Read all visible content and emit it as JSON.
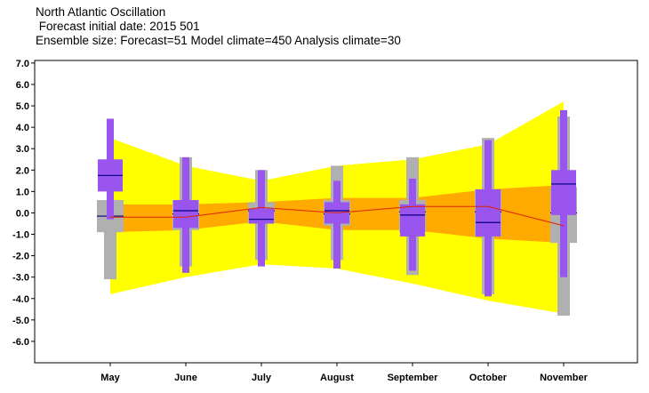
{
  "title": {
    "line1": "North Atlantic Oscillation",
    "line2": " Forecast initial date: 2015 501",
    "line3": "Ensemble size: Forecast=51 Model climate=450 Analysis climate=30"
  },
  "colors": {
    "yellow": "#ffff00",
    "orange": "#ffaa00",
    "gray": "#b0b0b0",
    "purple": "#9955ee",
    "median_line": "#000080",
    "mean_line": "#dd2200"
  },
  "chart_data": {
    "type": "box",
    "categories": [
      "May",
      "June",
      "July",
      "August",
      "September",
      "October",
      "November"
    ],
    "ylim": [
      -7,
      7
    ],
    "yticks": [
      7.0,
      6.0,
      5.0,
      4.0,
      3.0,
      2.0,
      1.0,
      0.0,
      -1.0,
      -2.0,
      -3.0,
      -4.0,
      -5.0,
      -6.0
    ],
    "ytick_labels": [
      "7.0",
      "6.0",
      "5.0",
      "4.0",
      "3.0",
      "2.0",
      "1.0",
      "0.0",
      "-1.0",
      "-2.0",
      "-3.0",
      "-4.0",
      "-5.0",
      "-6.0"
    ],
    "model_climate_extreme_band": {
      "upper": [
        3.5,
        2.2,
        1.5,
        2.2,
        2.5,
        3.2,
        5.2
      ],
      "lower": [
        -3.8,
        -3.0,
        -2.4,
        -2.6,
        -3.3,
        -4.1,
        -4.7
      ]
    },
    "model_climate_inner_band": {
      "upper": [
        0.4,
        0.4,
        0.5,
        0.7,
        0.7,
        1.1,
        1.3
      ],
      "lower": [
        -0.9,
        -0.8,
        -0.4,
        -0.8,
        -0.8,
        -1.2,
        -1.4
      ]
    },
    "analysis_climate_boxes": [
      {
        "min": -3.1,
        "q1": -0.9,
        "median": -0.15,
        "q3": 0.6,
        "max": 0.6
      },
      {
        "min": -2.5,
        "q1": -0.8,
        "median": -0.05,
        "q3": 0.6,
        "max": 2.6
      },
      {
        "min": -2.2,
        "q1": -0.5,
        "median": 0.1,
        "q3": 0.5,
        "max": 2.0
      },
      {
        "min": -2.2,
        "q1": -0.6,
        "median": -0.05,
        "q3": 0.6,
        "max": 2.2
      },
      {
        "min": -2.9,
        "q1": -0.9,
        "median": 0.05,
        "q3": 0.6,
        "max": 2.6
      },
      {
        "min": -3.8,
        "q1": -1.1,
        "median": 0.05,
        "q3": 1.1,
        "max": 3.5
      },
      {
        "min": -4.8,
        "q1": -1.4,
        "median": 0.0,
        "q3": 1.2,
        "max": 4.5
      }
    ],
    "forecast_boxes": [
      {
        "min": -0.3,
        "q1": 1.0,
        "median": 1.75,
        "q3": 2.5,
        "max": 4.4
      },
      {
        "min": -2.8,
        "q1": -0.7,
        "median": 0.1,
        "q3": 0.6,
        "max": 2.6
      },
      {
        "min": -2.5,
        "q1": -0.5,
        "median": -0.3,
        "q3": 0.2,
        "max": 2.0
      },
      {
        "min": -2.6,
        "q1": -0.5,
        "median": 0.1,
        "q3": 0.5,
        "max": 1.5
      },
      {
        "min": -2.7,
        "q1": -1.1,
        "median": -0.1,
        "q3": 0.4,
        "max": 1.6
      },
      {
        "min": -3.9,
        "q1": -1.1,
        "median": -0.45,
        "q3": 1.1,
        "max": 3.4
      },
      {
        "min": -3.0,
        "q1": -0.1,
        "median": 1.35,
        "q3": 2.0,
        "max": 4.8
      }
    ],
    "analysis_mean": [
      -0.2,
      -0.2,
      0.25,
      0.0,
      0.3,
      0.3,
      -0.6
    ],
    "grid": false
  }
}
